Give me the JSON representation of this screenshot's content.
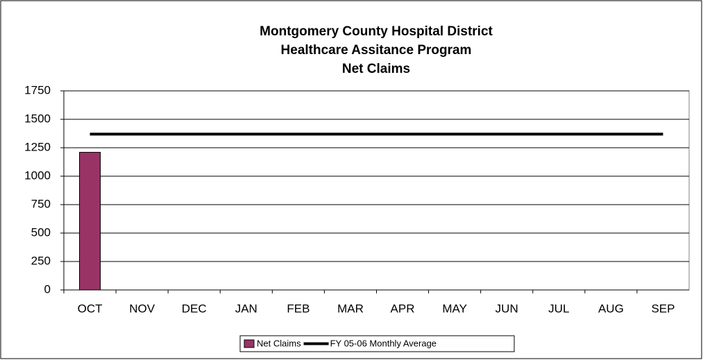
{
  "chart_data": {
    "type": "bar",
    "title": [
      "Montgomery County Hospital District",
      "Healthcare Assitance Program",
      "Net Claims"
    ],
    "categories": [
      "OCT",
      "NOV",
      "DEC",
      "JAN",
      "FEB",
      "MAR",
      "APR",
      "MAY",
      "JUN",
      "JUL",
      "AUG",
      "SEP"
    ],
    "series": [
      {
        "name": "Net Claims",
        "type": "bar",
        "color": "#993366",
        "values": [
          1210,
          null,
          null,
          null,
          null,
          null,
          null,
          null,
          null,
          null,
          null,
          null
        ]
      },
      {
        "name": "FY 05-06 Monthly Average",
        "type": "line",
        "color": "#000000",
        "values": [
          1370,
          1370,
          1370,
          1370,
          1370,
          1370,
          1370,
          1370,
          1370,
          1370,
          1370,
          1370
        ]
      }
    ],
    "ylim": [
      0,
      1750
    ],
    "yticks": [
      0,
      250,
      500,
      750,
      1000,
      1250,
      1500,
      1750
    ],
    "grid": true,
    "legend": "bottom"
  }
}
